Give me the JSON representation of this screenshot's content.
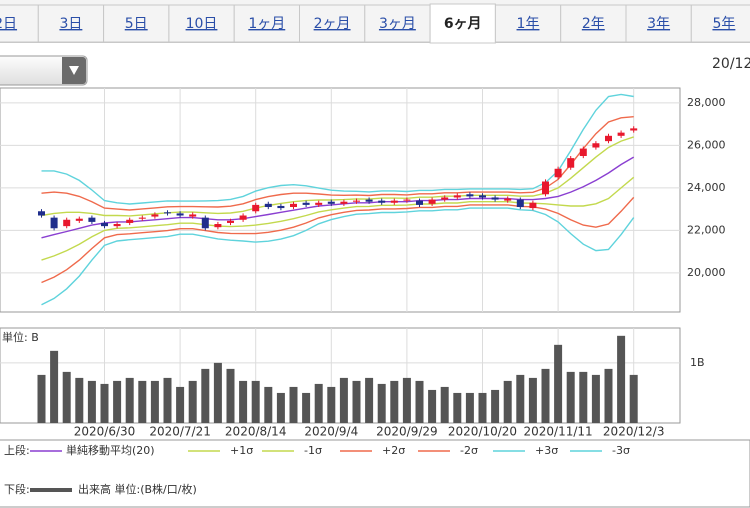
{
  "tabs": [
    "2日",
    "3日",
    "5日",
    "10日",
    "1ヶ月",
    "2ヶ月",
    "3ヶ月",
    "6ヶ月",
    "1年",
    "2年",
    "3年",
    "5年"
  ],
  "active_tab": 7,
  "date_label": "20/12",
  "legend_labels": {
    "upper": "上段:",
    "lower": "下段:"
  },
  "chart_data": [
    {
      "type": "candlestick",
      "up_color": "#e8182d",
      "down_color": "#1f2e8c",
      "open": [
        22900,
        22600,
        22200,
        22450,
        22600,
        22350,
        22200,
        22350,
        22550,
        22650,
        22850,
        22800,
        22650,
        22600,
        22150,
        22350,
        22500,
        22900,
        23250,
        23150,
        23100,
        23300,
        23200,
        23350,
        23250,
        23350,
        23450,
        23400,
        23300,
        23400,
        23400,
        23250,
        23450,
        23550,
        23700,
        23650,
        23550,
        23400,
        23450,
        23050,
        23700,
        24500,
        24950,
        25500,
        25900,
        26200,
        26450,
        26700
      ],
      "high": [
        23000,
        22700,
        22600,
        22650,
        22700,
        22450,
        22400,
        22600,
        22700,
        22850,
        22950,
        22900,
        22850,
        22700,
        22400,
        22550,
        22800,
        23300,
        23350,
        23250,
        23350,
        23400,
        23400,
        23450,
        23450,
        23500,
        23550,
        23500,
        23500,
        23550,
        23500,
        23550,
        23650,
        23750,
        23800,
        23750,
        23650,
        23600,
        23550,
        23400,
        24400,
        25000,
        25500,
        25950,
        26200,
        26550,
        26700,
        26900
      ],
      "low": [
        22600,
        22000,
        22100,
        22350,
        22300,
        22100,
        22100,
        22250,
        22450,
        22550,
        22700,
        22600,
        22550,
        22000,
        22050,
        22250,
        22400,
        22800,
        23000,
        22950,
        23000,
        23100,
        23100,
        23150,
        23150,
        23250,
        23250,
        23200,
        23200,
        23300,
        23100,
        23150,
        23350,
        23450,
        23500,
        23450,
        23350,
        23300,
        23000,
        22950,
        23600,
        24400,
        24850,
        25400,
        25800,
        26100,
        26350,
        26600
      ],
      "close": [
        22700,
        22100,
        22500,
        22550,
        22400,
        22200,
        22300,
        22500,
        22600,
        22750,
        22800,
        22700,
        22750,
        22100,
        22300,
        22450,
        22700,
        23200,
        23100,
        23050,
        23250,
        23200,
        23300,
        23250,
        23350,
        23400,
        23350,
        23300,
        23400,
        23450,
        23200,
        23450,
        23550,
        23650,
        23600,
        23550,
        23450,
        23500,
        23100,
        23300,
        24300,
        24900,
        25400,
        25850,
        26100,
        26450,
        26600,
        26800
      ],
      "series": [
        {
          "name": "単純移動平均(20)",
          "color": "#8a3fd1",
          "values": [
            21650,
            21800,
            21950,
            22100,
            22250,
            22350,
            22400,
            22400,
            22450,
            22500,
            22550,
            22600,
            22600,
            22550,
            22500,
            22500,
            22550,
            22650,
            22750,
            22850,
            22950,
            23050,
            23150,
            23200,
            23250,
            23300,
            23300,
            23350,
            23350,
            23350,
            23400,
            23400,
            23450,
            23450,
            23500,
            23500,
            23500,
            23500,
            23450,
            23450,
            23500,
            23600,
            23800,
            24050,
            24350,
            24700,
            25100,
            25450
          ]
        },
        {
          "name": "+1σ",
          "color": "#c3d94e",
          "values": [
            22700,
            22800,
            22850,
            22850,
            22800,
            22700,
            22700,
            22680,
            22730,
            22780,
            22830,
            22860,
            22860,
            22830,
            22800,
            22820,
            22900,
            23050,
            23170,
            23270,
            23350,
            23400,
            23430,
            23430,
            23450,
            23480,
            23470,
            23520,
            23520,
            23510,
            23560,
            23560,
            23610,
            23610,
            23650,
            23650,
            23650,
            23650,
            23610,
            23620,
            23750,
            24000,
            24450,
            24950,
            25450,
            25900,
            26200,
            26400
          ]
        },
        {
          "name": "-1σ",
          "color": "#c3d94e",
          "values": [
            20600,
            20800,
            21050,
            21350,
            21700,
            22000,
            22100,
            22120,
            22170,
            22220,
            22270,
            22340,
            22340,
            22270,
            22200,
            22180,
            22200,
            22250,
            22330,
            22430,
            22550,
            22700,
            22870,
            22970,
            23050,
            23120,
            23130,
            23180,
            23180,
            23190,
            23240,
            23240,
            23290,
            23290,
            23350,
            23350,
            23350,
            23350,
            23290,
            23280,
            23250,
            23200,
            23150,
            23150,
            23250,
            23500,
            24000,
            24500
          ]
        },
        {
          "name": "+2σ",
          "color": "#ef6a4c",
          "values": [
            23750,
            23800,
            23750,
            23600,
            23350,
            23050,
            23000,
            22960,
            23010,
            23060,
            23110,
            23120,
            23120,
            23110,
            23100,
            23140,
            23250,
            23450,
            23590,
            23690,
            23750,
            23750,
            23710,
            23660,
            23650,
            23660,
            23640,
            23690,
            23690,
            23670,
            23720,
            23720,
            23770,
            23770,
            23800,
            23800,
            23800,
            23800,
            23770,
            23790,
            24000,
            24400,
            25100,
            25850,
            26550,
            27100,
            27300,
            27350
          ]
        },
        {
          "name": "-2σ",
          "color": "#ef6a4c",
          "values": [
            19550,
            19800,
            20150,
            20600,
            21150,
            21650,
            21800,
            21840,
            21890,
            21940,
            21990,
            22080,
            22080,
            21990,
            21900,
            21860,
            21850,
            21850,
            21910,
            22010,
            22150,
            22350,
            22590,
            22740,
            22850,
            22940,
            22960,
            23010,
            23010,
            23030,
            23080,
            23080,
            23130,
            23130,
            23200,
            23200,
            23200,
            23200,
            23130,
            23110,
            23000,
            22800,
            22500,
            22250,
            22150,
            22300,
            22900,
            23550
          ]
        },
        {
          "name": "+3σ",
          "color": "#5fd3dc",
          "values": [
            24800,
            24800,
            24650,
            24350,
            23900,
            23400,
            23300,
            23240,
            23290,
            23340,
            23390,
            23380,
            23380,
            23390,
            23400,
            23460,
            23600,
            23850,
            24010,
            24110,
            24150,
            24100,
            23990,
            23890,
            23850,
            23840,
            23810,
            23860,
            23860,
            23830,
            23880,
            23880,
            23930,
            23930,
            23950,
            23950,
            23950,
            23950,
            23930,
            23960,
            24250,
            24800,
            25750,
            26750,
            27650,
            28300,
            28400,
            28300
          ]
        },
        {
          "name": "-3σ",
          "color": "#5fd3dc",
          "values": [
            18500,
            18800,
            19250,
            19850,
            20600,
            21300,
            21500,
            21560,
            21610,
            21660,
            21710,
            21820,
            21820,
            21710,
            21600,
            21540,
            21500,
            21450,
            21490,
            21590,
            21750,
            22000,
            22310,
            22510,
            22650,
            22760,
            22790,
            22840,
            22840,
            22870,
            22920,
            22920,
            22970,
            22970,
            23050,
            23050,
            23050,
            23050,
            22970,
            22940,
            22750,
            22400,
            21850,
            21350,
            21050,
            21100,
            21800,
            22600
          ]
        }
      ],
      "ylim": [
        18160,
        28700
      ],
      "yticks": [
        {
          "value": 20000,
          "label": "20,000"
        },
        {
          "value": 22000,
          "label": "22,000"
        },
        {
          "value": 24000,
          "label": "24,000"
        },
        {
          "value": 26000,
          "label": "26,000"
        },
        {
          "value": 28000,
          "label": "28,000"
        }
      ],
      "grid": true
    },
    {
      "type": "bar",
      "ylabel": "単位: B",
      "categories": [
        null,
        null,
        null,
        null,
        null,
        "2020/6/30",
        null,
        null,
        null,
        null,
        null,
        "2020/7/21",
        null,
        null,
        null,
        null,
        null,
        "2020/8/14",
        null,
        null,
        null,
        null,
        null,
        "2020/9/4",
        null,
        null,
        null,
        null,
        null,
        "2020/9/29",
        null,
        null,
        null,
        null,
        null,
        "2020/10/20",
        null,
        null,
        null,
        null,
        null,
        "2020/11/11",
        null,
        null,
        null,
        null,
        null,
        "2020/12/3"
      ],
      "series": [
        {
          "name": "出来高 単位:(B株/口/枚)",
          "color": "#555555",
          "values": [
            0.8,
            1.2,
            0.85,
            0.75,
            0.7,
            0.65,
            0.7,
            0.75,
            0.7,
            0.7,
            0.75,
            0.6,
            0.7,
            0.9,
            1.0,
            0.9,
            0.7,
            0.7,
            0.6,
            0.5,
            0.6,
            0.5,
            0.65,
            0.6,
            0.75,
            0.7,
            0.75,
            0.65,
            0.7,
            0.75,
            0.7,
            0.55,
            0.6,
            0.5,
            0.5,
            0.5,
            0.55,
            0.7,
            0.8,
            0.75,
            0.9,
            1.3,
            0.85,
            0.85,
            0.8,
            0.9,
            1.45,
            0.8
          ]
        }
      ],
      "ylim": [
        0,
        1.58
      ],
      "yticks": [
        {
          "value": 1,
          "label": "1B"
        }
      ],
      "grid": true
    }
  ]
}
